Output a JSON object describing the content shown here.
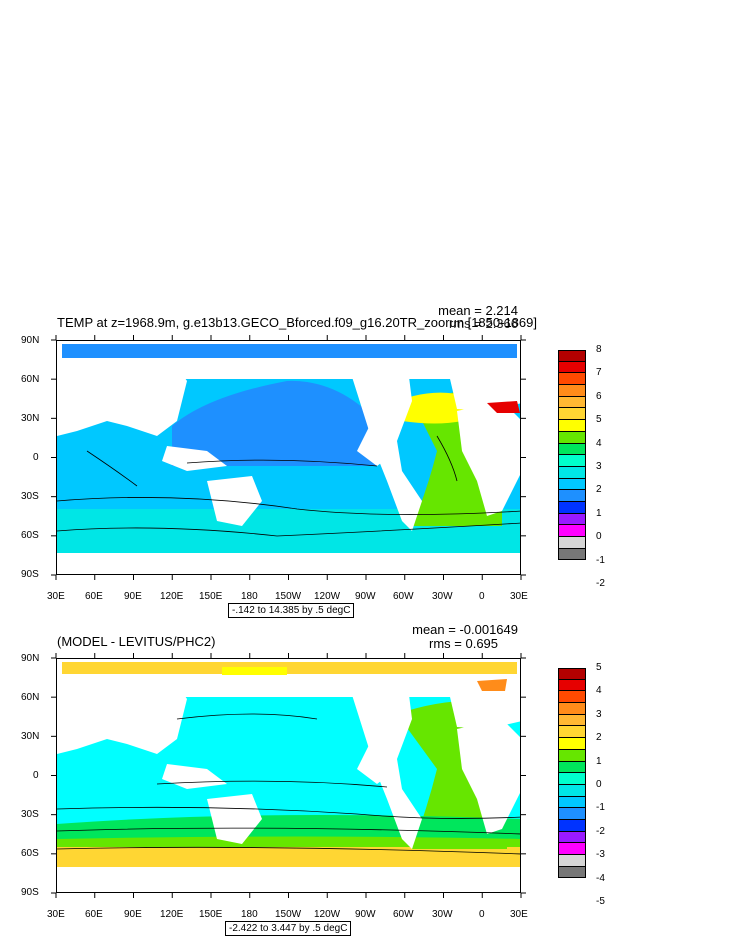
{
  "panels": [
    {
      "title": "TEMP at z=1968.9m, g.e13b13.GECO_Bforced.f09_g16.20TR_zoorun [1850-1869]",
      "mean_text": "mean = 2.214",
      "rms_text": "rms = 2.366",
      "contour_info": "-.142 to 14.385 by .5 degC",
      "lat_labels": [
        "90N",
        "60N",
        "30N",
        "0",
        "30S",
        "60S",
        "90S"
      ],
      "lon_labels": [
        "30E",
        "60E",
        "90E",
        "120E",
        "150E",
        "180",
        "150W",
        "120W",
        "90W",
        "60W",
        "30W",
        "0",
        "30E"
      ],
      "colorbar": {
        "labels": [
          "8",
          "7",
          "6",
          "5",
          "4",
          "3",
          "2",
          "1",
          "0",
          "-1",
          "-2"
        ],
        "colors": [
          "#b30000",
          "#e60000",
          "#ff4a00",
          "#ff8c1a",
          "#ffb833",
          "#ffd633",
          "#ffff00",
          "#66e600",
          "#00e65c",
          "#00ffcc",
          "#00e6e6",
          "#00c8ff",
          "#1e90ff",
          "#0033ff",
          "#9a1aff",
          "#ff00ff",
          "#d6d6d6",
          "#777777"
        ]
      },
      "ocean": {
        "base": "#00c8ff",
        "north": "#1e90ff",
        "south": "#00e6e6",
        "atlantic": "#66e600",
        "atlantic_north": "#ffff00",
        "arctic": "#1e90ff",
        "med": "#ff4a00"
      }
    },
    {
      "title": "(MODEL - LEVITUS/PHC2)",
      "mean_text": "mean = -0.001649",
      "rms_text": "rms = 0.695",
      "contour_info": "-2.422 to 3.447 by .5 degC",
      "lat_labels": [
        "90N",
        "60N",
        "30N",
        "0",
        "30S",
        "60S",
        "90S"
      ],
      "lon_labels": [
        "30E",
        "60E",
        "90E",
        "120E",
        "150E",
        "180",
        "150W",
        "120W",
        "90W",
        "60W",
        "30W",
        "0",
        "30E"
      ],
      "colorbar": {
        "labels": [
          "5",
          "4",
          "3",
          "2",
          "1",
          "0",
          "-1",
          "-2",
          "-3",
          "-4",
          "-5"
        ],
        "colors": [
          "#b30000",
          "#e60000",
          "#ff4a00",
          "#ff8c1a",
          "#ffb833",
          "#ffd633",
          "#ffff00",
          "#66e600",
          "#00e65c",
          "#00ffcc",
          "#00e6e6",
          "#00c8ff",
          "#1e90ff",
          "#0033ff",
          "#9a1aff",
          "#ff00ff",
          "#d6d6d6",
          "#777777"
        ]
      },
      "ocean": {
        "base": "#00ffff",
        "north": "#00ffff",
        "south": "#66e600",
        "atlantic": "#66e600",
        "atlantic_north": "#66e600",
        "arctic": "#ffd633",
        "med": "#ff8c1a"
      }
    }
  ]
}
